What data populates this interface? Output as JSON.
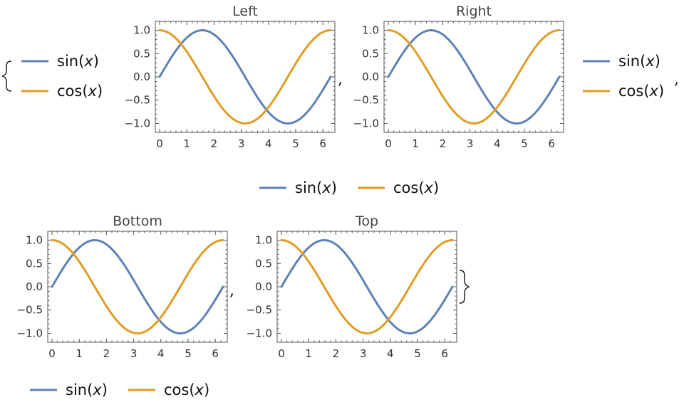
{
  "chart_data": [
    {
      "type": "line",
      "title": "Left",
      "legend_position": "left",
      "xlim": [
        0,
        6.2832
      ],
      "ylim": [
        -1.1,
        1.1
      ],
      "x_ticks": [
        "0",
        "1",
        "2",
        "3",
        "4",
        "5",
        "6"
      ],
      "y_ticks": [
        "1.0",
        "0.5",
        "0.0",
        "−0.5",
        "−1.0"
      ],
      "series": [
        {
          "name": "sin(x)",
          "fn": "sin",
          "color": "#5E81B5"
        },
        {
          "name": "cos(x)",
          "fn": "cos",
          "color": "#E19C24"
        }
      ]
    },
    {
      "type": "line",
      "title": "Right",
      "legend_position": "right",
      "xlim": [
        0,
        6.2832
      ],
      "ylim": [
        -1.1,
        1.1
      ],
      "x_ticks": [
        "0",
        "1",
        "2",
        "3",
        "4",
        "5",
        "6"
      ],
      "y_ticks": [
        "1.0",
        "0.5",
        "0.0",
        "−0.5",
        "−1.0"
      ],
      "series": [
        {
          "name": "sin(x)",
          "fn": "sin",
          "color": "#5E81B5"
        },
        {
          "name": "cos(x)",
          "fn": "cos",
          "color": "#E19C24"
        }
      ]
    },
    {
      "type": "line",
      "title": "Bottom",
      "legend_position": "bottom",
      "xlim": [
        0,
        6.2832
      ],
      "ylim": [
        -1.1,
        1.1
      ],
      "x_ticks": [
        "0",
        "1",
        "2",
        "3",
        "4",
        "5",
        "6"
      ],
      "y_ticks": [
        "1.0",
        "0.5",
        "0.0",
        "−0.5",
        "−1.0"
      ],
      "series": [
        {
          "name": "sin(x)",
          "fn": "sin",
          "color": "#5E81B5"
        },
        {
          "name": "cos(x)",
          "fn": "cos",
          "color": "#E19C24"
        }
      ]
    },
    {
      "type": "line",
      "title": "Top",
      "legend_position": "top",
      "xlim": [
        0,
        6.2832
      ],
      "ylim": [
        -1.1,
        1.1
      ],
      "x_ticks": [
        "0",
        "1",
        "2",
        "3",
        "4",
        "5",
        "6"
      ],
      "y_ticks": [
        "1.0",
        "0.5",
        "0.0",
        "−0.5",
        "−1.0"
      ],
      "series": [
        {
          "name": "sin(x)",
          "fn": "sin",
          "color": "#5E81B5"
        },
        {
          "name": "cos(x)",
          "fn": "cos",
          "color": "#E19C24"
        }
      ]
    }
  ],
  "punctuation": {
    "open_brace": "{",
    "close_brace": "}",
    "comma": ","
  }
}
